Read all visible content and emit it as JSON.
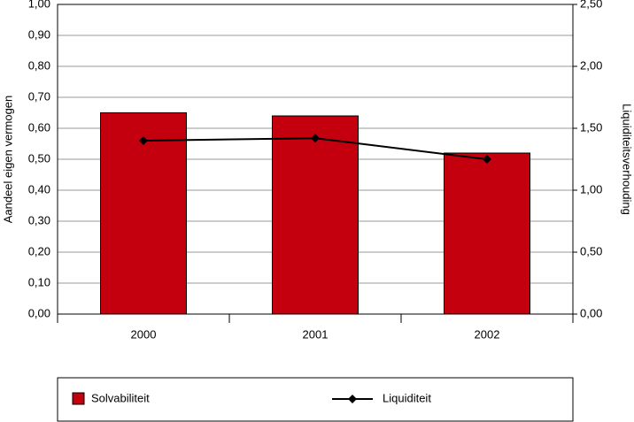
{
  "chart_data": {
    "type": "bar",
    "categories": [
      "2000",
      "2001",
      "2002"
    ],
    "series": [
      {
        "name": "Solvabiliteit",
        "type": "bar",
        "color": "#c4000f",
        "values": [
          0.65,
          0.64,
          0.52
        ]
      },
      {
        "name": "Liquiditeit",
        "type": "line",
        "color": "#000000",
        "axis": "y2",
        "values": [
          1.4,
          1.42,
          1.25
        ]
      }
    ],
    "ylabel": "Aandeel eigen vermogen",
    "y2label": "Liquiditeitsverhouding",
    "ylim": [
      0,
      1
    ],
    "yticks": [
      {
        "value": 0,
        "label": "0,00"
      },
      {
        "value": 0.1,
        "label": "0,10"
      },
      {
        "value": 0.2,
        "label": "0,20"
      },
      {
        "value": 0.3,
        "label": "0,30"
      },
      {
        "value": 0.4,
        "label": "0,40"
      },
      {
        "value": 0.5,
        "label": "0,50"
      },
      {
        "value": 0.6,
        "label": "0,60"
      },
      {
        "value": 0.7,
        "label": "0,70"
      },
      {
        "value": 0.8,
        "label": "0,80"
      },
      {
        "value": 0.9,
        "label": "0,90"
      },
      {
        "value": 1,
        "label": "1,00"
      }
    ],
    "y2lim": [
      0,
      2.5
    ],
    "y2ticks": [
      {
        "value": 0,
        "label": "0,00"
      },
      {
        "value": 0.5,
        "label": "0,50"
      },
      {
        "value": 1,
        "label": "1,00"
      },
      {
        "value": 1.5,
        "label": "1,50"
      },
      {
        "value": 2,
        "label": "2,00"
      },
      {
        "value": 2.5,
        "label": "2,50"
      }
    ],
    "grid": true,
    "legend": "bottom"
  }
}
